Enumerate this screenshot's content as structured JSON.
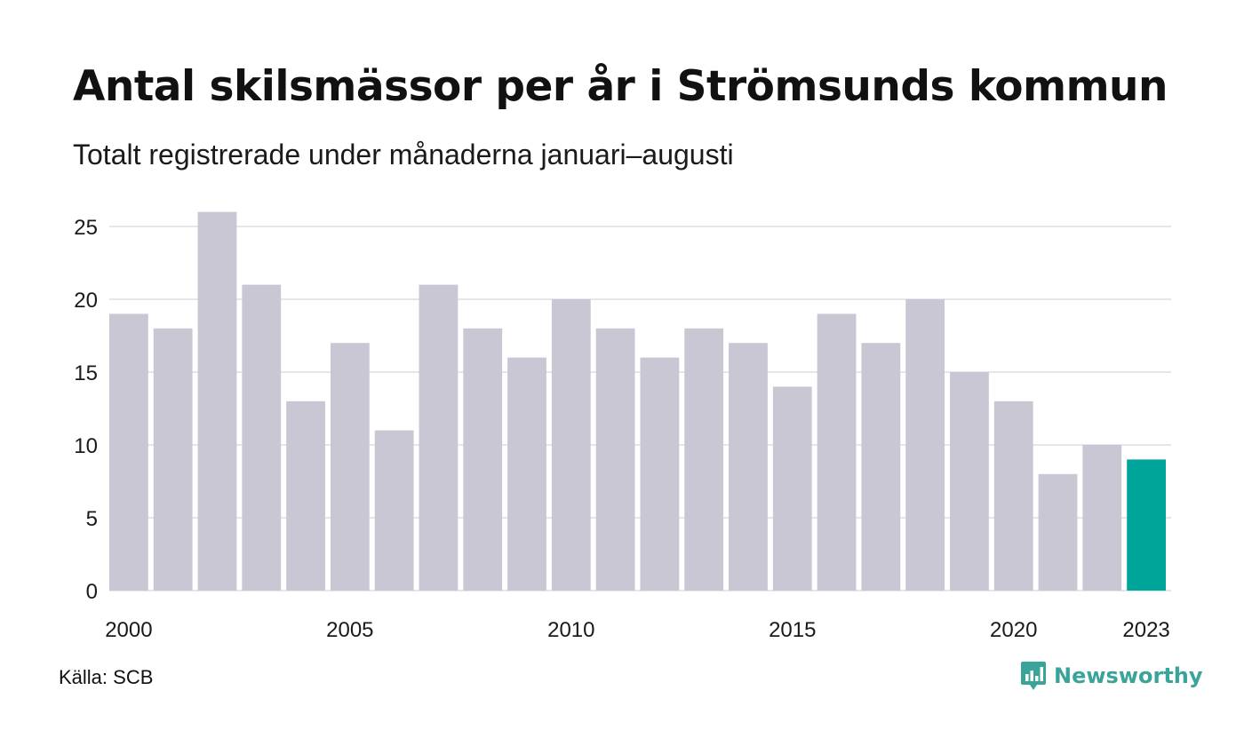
{
  "header": {
    "title": "Antal skilsmässor per år i Strömsunds kommun",
    "subtitle": "Totalt registrerade under månaderna januari–augusti"
  },
  "footer": {
    "source": "Källa: SCB",
    "brand": "Newsworthy",
    "brand_icon": "bar-chart-badge-icon"
  },
  "chart_data": {
    "type": "bar",
    "categories": [
      "2000",
      "2001",
      "2002",
      "2003",
      "2004",
      "2005",
      "2006",
      "2007",
      "2008",
      "2009",
      "2010",
      "2011",
      "2012",
      "2013",
      "2014",
      "2015",
      "2016",
      "2017",
      "2018",
      "2019",
      "2020",
      "2021",
      "2022",
      "2023"
    ],
    "values": [
      19,
      18,
      26,
      21,
      13,
      17,
      11,
      21,
      18,
      16,
      20,
      18,
      16,
      18,
      17,
      14,
      19,
      17,
      20,
      15,
      13,
      8,
      10,
      9
    ],
    "x_tick_labels": [
      "2000",
      "2005",
      "2010",
      "2015",
      "2020",
      "2023"
    ],
    "y_ticks": [
      0,
      5,
      10,
      15,
      20,
      25
    ],
    "ylim": [
      0,
      26
    ],
    "grid": true,
    "legend": "none",
    "highlight_index": 23,
    "colors": {
      "bar": "#c8c7d3",
      "highlight": "#00a599",
      "grid": "#e6e6ea",
      "brand": "#3aa49a"
    }
  }
}
